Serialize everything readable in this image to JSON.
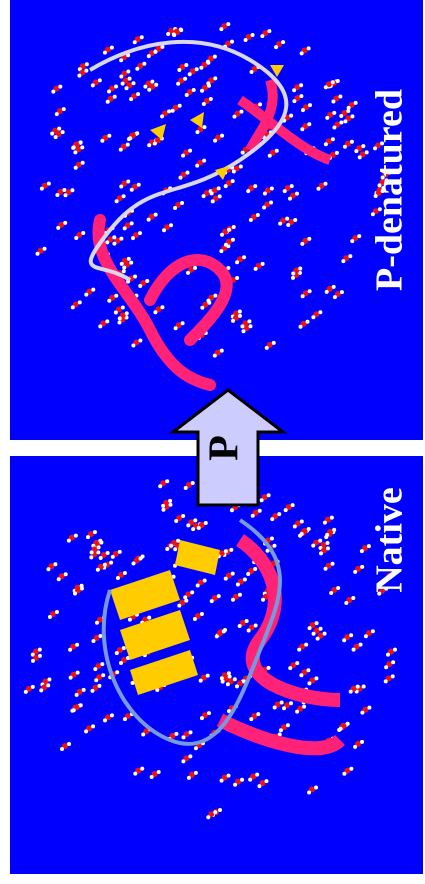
{
  "panels": [
    {
      "label": "P-denatured"
    },
    {
      "label": "Native"
    }
  ],
  "arrow": {
    "label": "P"
  }
}
